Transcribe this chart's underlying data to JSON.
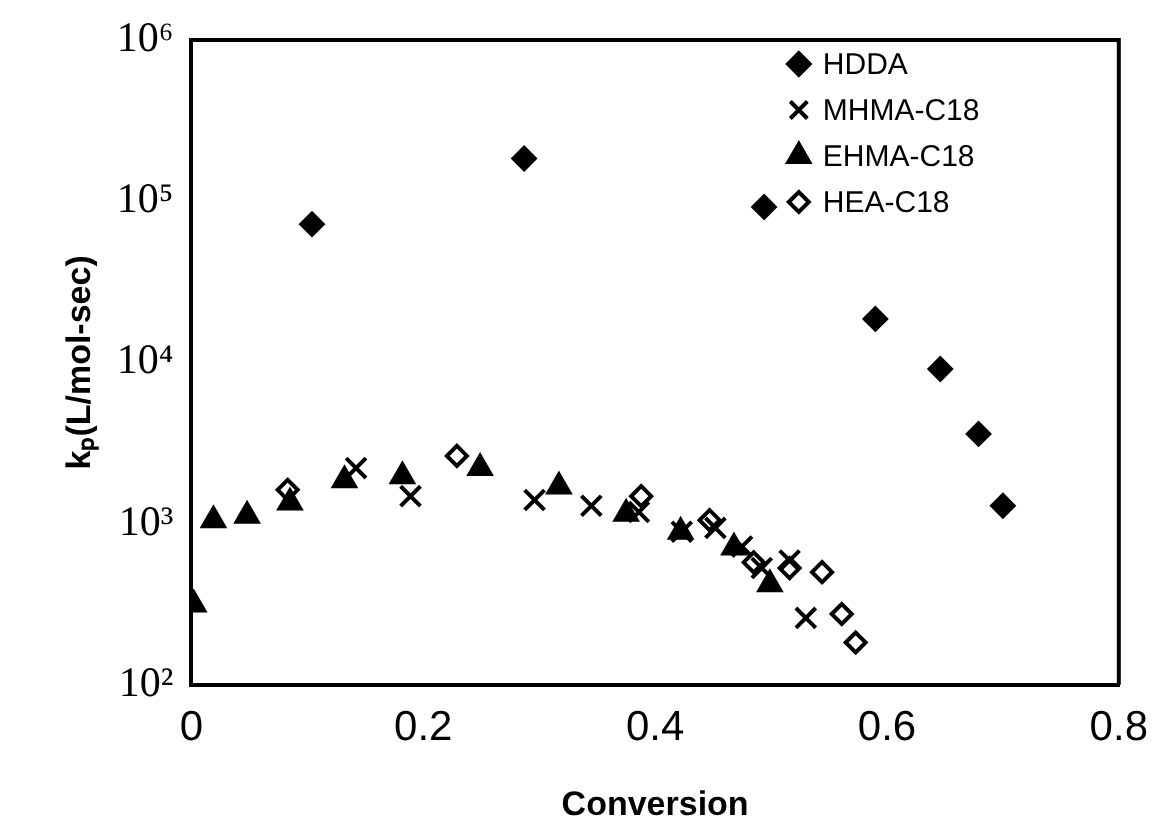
{
  "chart_data": {
    "type": "scatter",
    "xlabel": "Conversion",
    "ylabel": "kₚ(L/mol-sec)",
    "xlim": [
      0,
      0.8
    ],
    "xticks": [
      0,
      0.2,
      0.4,
      0.6,
      0.8
    ],
    "ylim": [
      100,
      1000000
    ],
    "yticks": [
      {
        "value": 100,
        "label": "10²"
      },
      {
        "value": 1000,
        "label": "10³"
      },
      {
        "value": 10000,
        "label": "10⁴"
      },
      {
        "value": 100000,
        "label": "10⁵"
      },
      {
        "value": 1000000,
        "label": "10⁶"
      }
    ],
    "log": "y",
    "grid": false,
    "legend": "top right",
    "series": [
      {
        "name": "HDDA",
        "color": "#000000",
        "marker": "diamond",
        "x": [
          0.104,
          0.287,
          0.494,
          0.59,
          0.646,
          0.679,
          0.7
        ],
        "values": [
          72000,
          184000,
          92000,
          18600,
          9100,
          3600,
          1290
        ]
      },
      {
        "name": "MHMA-C18",
        "color": "#000000",
        "marker": "cross",
        "x": [
          0.142,
          0.189,
          0.296,
          0.345,
          0.386,
          0.423,
          0.452,
          0.475,
          0.492,
          0.516,
          0.53
        ],
        "values": [
          2210,
          1480,
          1400,
          1290,
          1180,
          890,
          940,
          720,
          530,
          590,
          260
        ]
      },
      {
        "name": "EHMA-C18",
        "color": "#000000",
        "marker": "triangle",
        "x": [
          0.002,
          0.019,
          0.048,
          0.085,
          0.132,
          0.182,
          0.249,
          0.317,
          0.375,
          0.422,
          0.468,
          0.499
        ],
        "values": [
          315,
          1050,
          1120,
          1350,
          1860,
          1970,
          2210,
          1700,
          1150,
          890,
          710,
          420
        ]
      },
      {
        "name": "HEA-C18",
        "color": "#000000",
        "marker": "diamond-open",
        "x": [
          0.083,
          0.229,
          0.388,
          0.447,
          0.485,
          0.516,
          0.544,
          0.561,
          0.573
        ],
        "values": [
          1620,
          2630,
          1480,
          1050,
          575,
          530,
          500,
          275,
          183
        ]
      }
    ]
  }
}
